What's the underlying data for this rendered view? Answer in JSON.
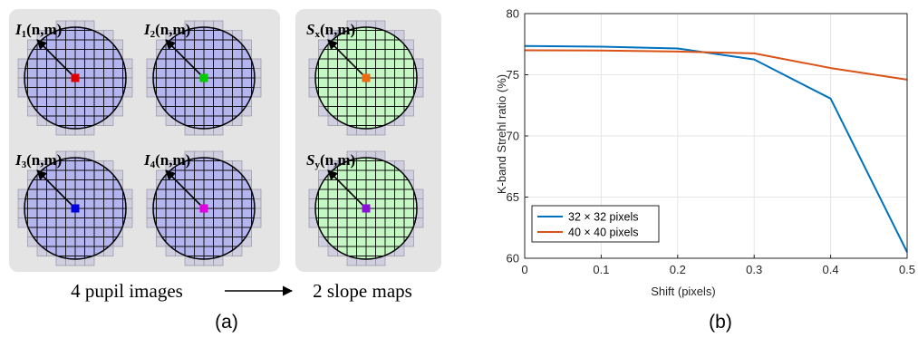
{
  "panel_a": {
    "pupils": [
      {
        "prefix": "I",
        "sub": "1",
        "suffix": "(n,m)",
        "dot_color": "#e00000",
        "fill": "#b4b4ef"
      },
      {
        "prefix": "I",
        "sub": "2",
        "suffix": "(n,m)",
        "dot_color": "#00cc00",
        "fill": "#b4b4ef"
      },
      {
        "prefix": "I",
        "sub": "3",
        "suffix": "(n,m)",
        "dot_color": "#0000e0",
        "fill": "#b4b4ef"
      },
      {
        "prefix": "I",
        "sub": "4",
        "suffix": "(n,m)",
        "dot_color": "#e000e0",
        "fill": "#b4b4ef"
      }
    ],
    "slopes": [
      {
        "prefix": "S",
        "sub": "x",
        "suffix": "(n,m)",
        "dot_color": "#ee6a10",
        "fill": "#c4f7c4"
      },
      {
        "prefix": "S",
        "sub": "y",
        "suffix": "(n,m)",
        "dot_color": "#8a10d8",
        "fill": "#c4f7c4"
      }
    ],
    "left_caption": "4 pupil images",
    "right_caption": "2 slope maps",
    "panel_label": "(a)",
    "box_color": "#e4e4e4"
  },
  "panel_b": {
    "panel_label": "(b)"
  },
  "chart_data": {
    "type": "line",
    "xlabel": "Shift (pixels)",
    "ylabel": "K-band Strehl ratio (%)",
    "xlim": [
      0,
      0.5
    ],
    "ylim": [
      60,
      80
    ],
    "xticks": [
      0,
      0.1,
      0.2,
      0.3,
      0.4,
      0.5
    ],
    "xtick_labels": [
      "0",
      "0.1",
      "0.2",
      "0.3",
      "0.4",
      "0.5"
    ],
    "yticks": [
      60,
      65,
      70,
      75,
      80
    ],
    "ytick_labels": [
      "60",
      "65",
      "70",
      "75",
      "80"
    ],
    "grid": true,
    "legend_position": "bottom-left",
    "x": [
      0,
      0.1,
      0.2,
      0.3,
      0.4,
      0.5
    ],
    "series": [
      {
        "name": "32 × 32 pixels",
        "color": "#0072bd",
        "values": [
          77.35,
          77.3,
          77.15,
          76.25,
          73.05,
          60.5
        ]
      },
      {
        "name": "40 × 40 pixels",
        "color": "#d95319",
        "values": [
          77.0,
          76.98,
          76.9,
          76.75,
          75.55,
          74.6
        ]
      }
    ]
  }
}
